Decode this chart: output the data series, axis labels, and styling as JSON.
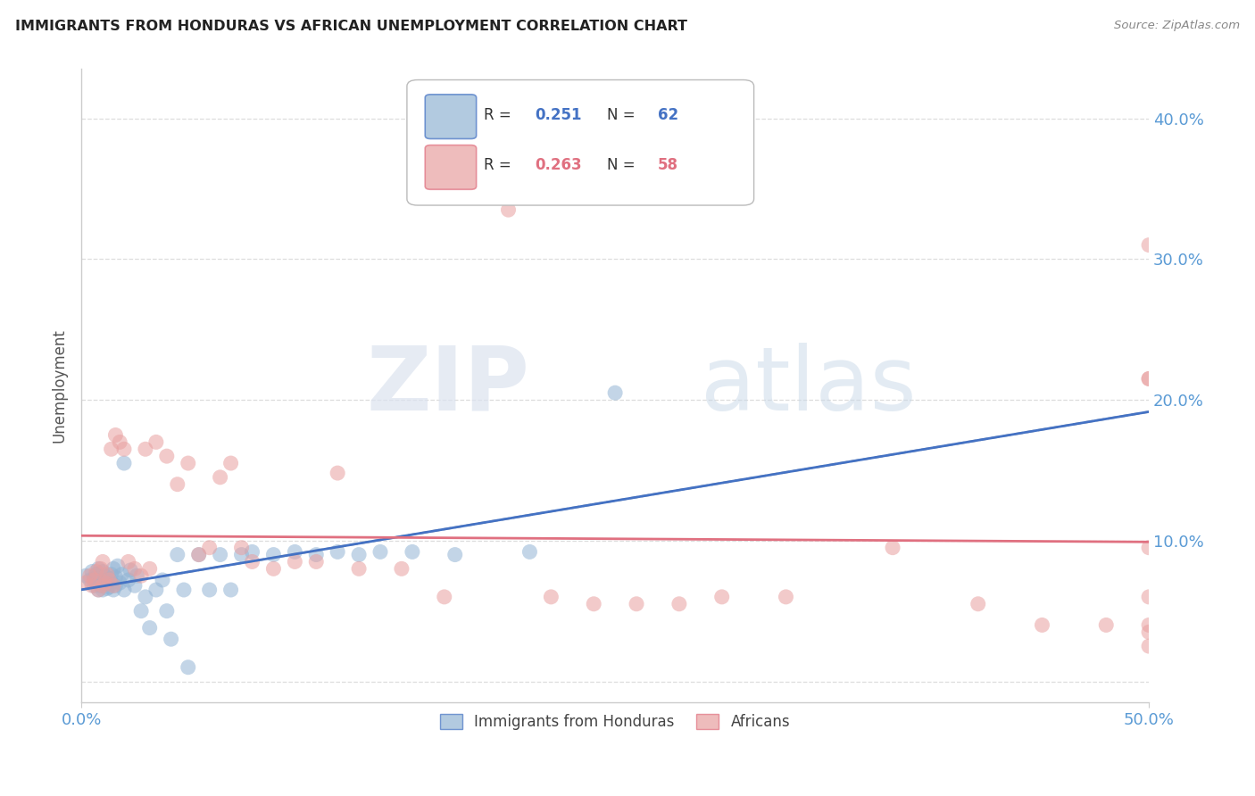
{
  "title": "IMMIGRANTS FROM HONDURAS VS AFRICAN UNEMPLOYMENT CORRELATION CHART",
  "source": "Source: ZipAtlas.com",
  "ylabel": "Unemployment",
  "yticks": [
    0.0,
    0.1,
    0.2,
    0.3,
    0.4
  ],
  "ytick_labels_right": [
    "",
    "10.0%",
    "20.0%",
    "30.0%",
    "40.0%"
  ],
  "xlim": [
    0.0,
    0.5
  ],
  "ylim": [
    -0.015,
    0.435
  ],
  "legend_blue_r": "0.251",
  "legend_blue_n": "62",
  "legend_pink_r": "0.263",
  "legend_pink_n": "58",
  "legend_label_blue": "Immigrants from Honduras",
  "legend_label_pink": "Africans",
  "blue_color": "#92b4d4",
  "pink_color": "#e8a0a0",
  "blue_line_color": "#4472c4",
  "pink_line_color": "#e07080",
  "dashed_line_color": "#aaaaaa",
  "watermark_zip_color": "#d8dde8",
  "watermark_atlas_color": "#c8d4e8",
  "grid_color": "#dddddd",
  "title_color": "#222222",
  "source_color": "#888888",
  "tick_color": "#5b9bd5",
  "blue_points_x": [
    0.002,
    0.004,
    0.005,
    0.006,
    0.006,
    0.007,
    0.007,
    0.008,
    0.008,
    0.008,
    0.009,
    0.009,
    0.01,
    0.01,
    0.01,
    0.011,
    0.011,
    0.012,
    0.012,
    0.013,
    0.013,
    0.014,
    0.014,
    0.015,
    0.015,
    0.016,
    0.016,
    0.017,
    0.018,
    0.019,
    0.02,
    0.02,
    0.022,
    0.023,
    0.025,
    0.026,
    0.028,
    0.03,
    0.032,
    0.035,
    0.038,
    0.04,
    0.042,
    0.045,
    0.048,
    0.05,
    0.055,
    0.06,
    0.065,
    0.07,
    0.075,
    0.08,
    0.09,
    0.1,
    0.11,
    0.12,
    0.13,
    0.14,
    0.155,
    0.175,
    0.21,
    0.25
  ],
  "blue_points_y": [
    0.075,
    0.072,
    0.078,
    0.068,
    0.073,
    0.07,
    0.076,
    0.065,
    0.071,
    0.08,
    0.068,
    0.074,
    0.065,
    0.071,
    0.078,
    0.069,
    0.075,
    0.066,
    0.072,
    0.067,
    0.073,
    0.07,
    0.076,
    0.065,
    0.08,
    0.068,
    0.074,
    0.082,
    0.07,
    0.076,
    0.065,
    0.155,
    0.072,
    0.079,
    0.068,
    0.075,
    0.05,
    0.06,
    0.038,
    0.065,
    0.072,
    0.05,
    0.03,
    0.09,
    0.065,
    0.01,
    0.09,
    0.065,
    0.09,
    0.065,
    0.09,
    0.092,
    0.09,
    0.092,
    0.09,
    0.092,
    0.09,
    0.092,
    0.092,
    0.09,
    0.092,
    0.205
  ],
  "pink_points_x": [
    0.002,
    0.004,
    0.005,
    0.006,
    0.007,
    0.008,
    0.009,
    0.01,
    0.01,
    0.011,
    0.012,
    0.013,
    0.014,
    0.015,
    0.016,
    0.018,
    0.02,
    0.022,
    0.025,
    0.028,
    0.03,
    0.032,
    0.035,
    0.04,
    0.045,
    0.05,
    0.055,
    0.06,
    0.065,
    0.07,
    0.075,
    0.08,
    0.09,
    0.1,
    0.11,
    0.12,
    0.13,
    0.15,
    0.17,
    0.2,
    0.22,
    0.24,
    0.26,
    0.28,
    0.3,
    0.33,
    0.38,
    0.42,
    0.45,
    0.48,
    0.5,
    0.5,
    0.5,
    0.5,
    0.5,
    0.5,
    0.5,
    0.5
  ],
  "pink_points_y": [
    0.07,
    0.075,
    0.068,
    0.072,
    0.078,
    0.065,
    0.08,
    0.068,
    0.085,
    0.07,
    0.076,
    0.072,
    0.165,
    0.068,
    0.175,
    0.17,
    0.165,
    0.085,
    0.08,
    0.075,
    0.165,
    0.08,
    0.17,
    0.16,
    0.14,
    0.155,
    0.09,
    0.095,
    0.145,
    0.155,
    0.095,
    0.085,
    0.08,
    0.085,
    0.085,
    0.148,
    0.08,
    0.08,
    0.06,
    0.335,
    0.06,
    0.055,
    0.055,
    0.055,
    0.06,
    0.06,
    0.095,
    0.055,
    0.04,
    0.04,
    0.31,
    0.215,
    0.215,
    0.095,
    0.06,
    0.04,
    0.035,
    0.025
  ]
}
